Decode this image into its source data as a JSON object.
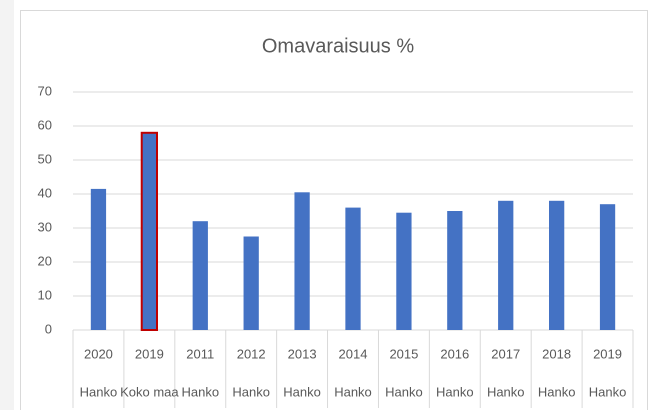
{
  "chart_data": {
    "type": "bar",
    "title": "Omavaraisuus %",
    "categories": [
      "2020",
      "2019",
      "2011",
      "2012",
      "2013",
      "2014",
      "2015",
      "2016",
      "2017",
      "2018",
      "2019"
    ],
    "category_groups": [
      "Hanko",
      "Koko maa",
      "Hanko",
      "Hanko",
      "Hanko",
      "Hanko",
      "Hanko",
      "Hanko",
      "Hanko",
      "Hanko",
      "Hanko"
    ],
    "values": [
      41.5,
      58,
      32,
      27.5,
      40.5,
      36,
      34.5,
      35,
      38,
      38,
      37
    ],
    "color": "#4472c4",
    "highlight": {
      "index": 1,
      "color": "#c00000"
    },
    "ylim": [
      0,
      70
    ],
    "yticks": [
      0,
      10,
      20,
      30,
      40,
      50,
      60,
      70
    ],
    "grid": true
  }
}
